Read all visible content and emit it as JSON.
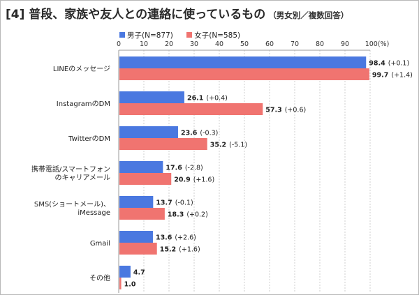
{
  "title": {
    "main": "[4] 普段、家族や友人との連絡に使っているもの",
    "sub": "（男女別／複数回答）"
  },
  "colors": {
    "male": "#4a78e0",
    "female": "#f07470",
    "change_negative": "#1a55c8",
    "change_default": "#222222"
  },
  "chart_data": {
    "type": "bar",
    "orientation": "horizontal",
    "xlim": [
      0,
      100
    ],
    "ticks": [
      "0",
      "10",
      "20",
      "30",
      "40",
      "50",
      "60",
      "70",
      "80",
      "90",
      "100(%)"
    ],
    "categories": [
      [
        "LINEのメッセージ"
      ],
      [
        "InstagramのDM"
      ],
      [
        "TwitterのDM"
      ],
      [
        "携帯電話/スマートフォン",
        "のキャリアメール"
      ],
      [
        "SMS(ショートメール)、",
        "iMessage"
      ],
      [
        "Gmail"
      ],
      [
        "その他"
      ]
    ],
    "series": [
      {
        "name": "男子(N=877)",
        "values": [
          98.4,
          26.1,
          23.6,
          17.6,
          13.7,
          13.6,
          4.7
        ],
        "changes": [
          "(+0.1)",
          "(+0.4)",
          "(-0.3)",
          "(-2.8)",
          "(-0.1)",
          "(+2.6)",
          ""
        ]
      },
      {
        "name": "女子(N=585)",
        "values": [
          99.7,
          57.3,
          35.2,
          20.9,
          18.3,
          15.2,
          1.0
        ],
        "changes": [
          "(+1.4)",
          "(+0.6)",
          "(-5.1)",
          "(+1.6)",
          "(+0.2)",
          "(+1.6)",
          ""
        ]
      }
    ]
  }
}
